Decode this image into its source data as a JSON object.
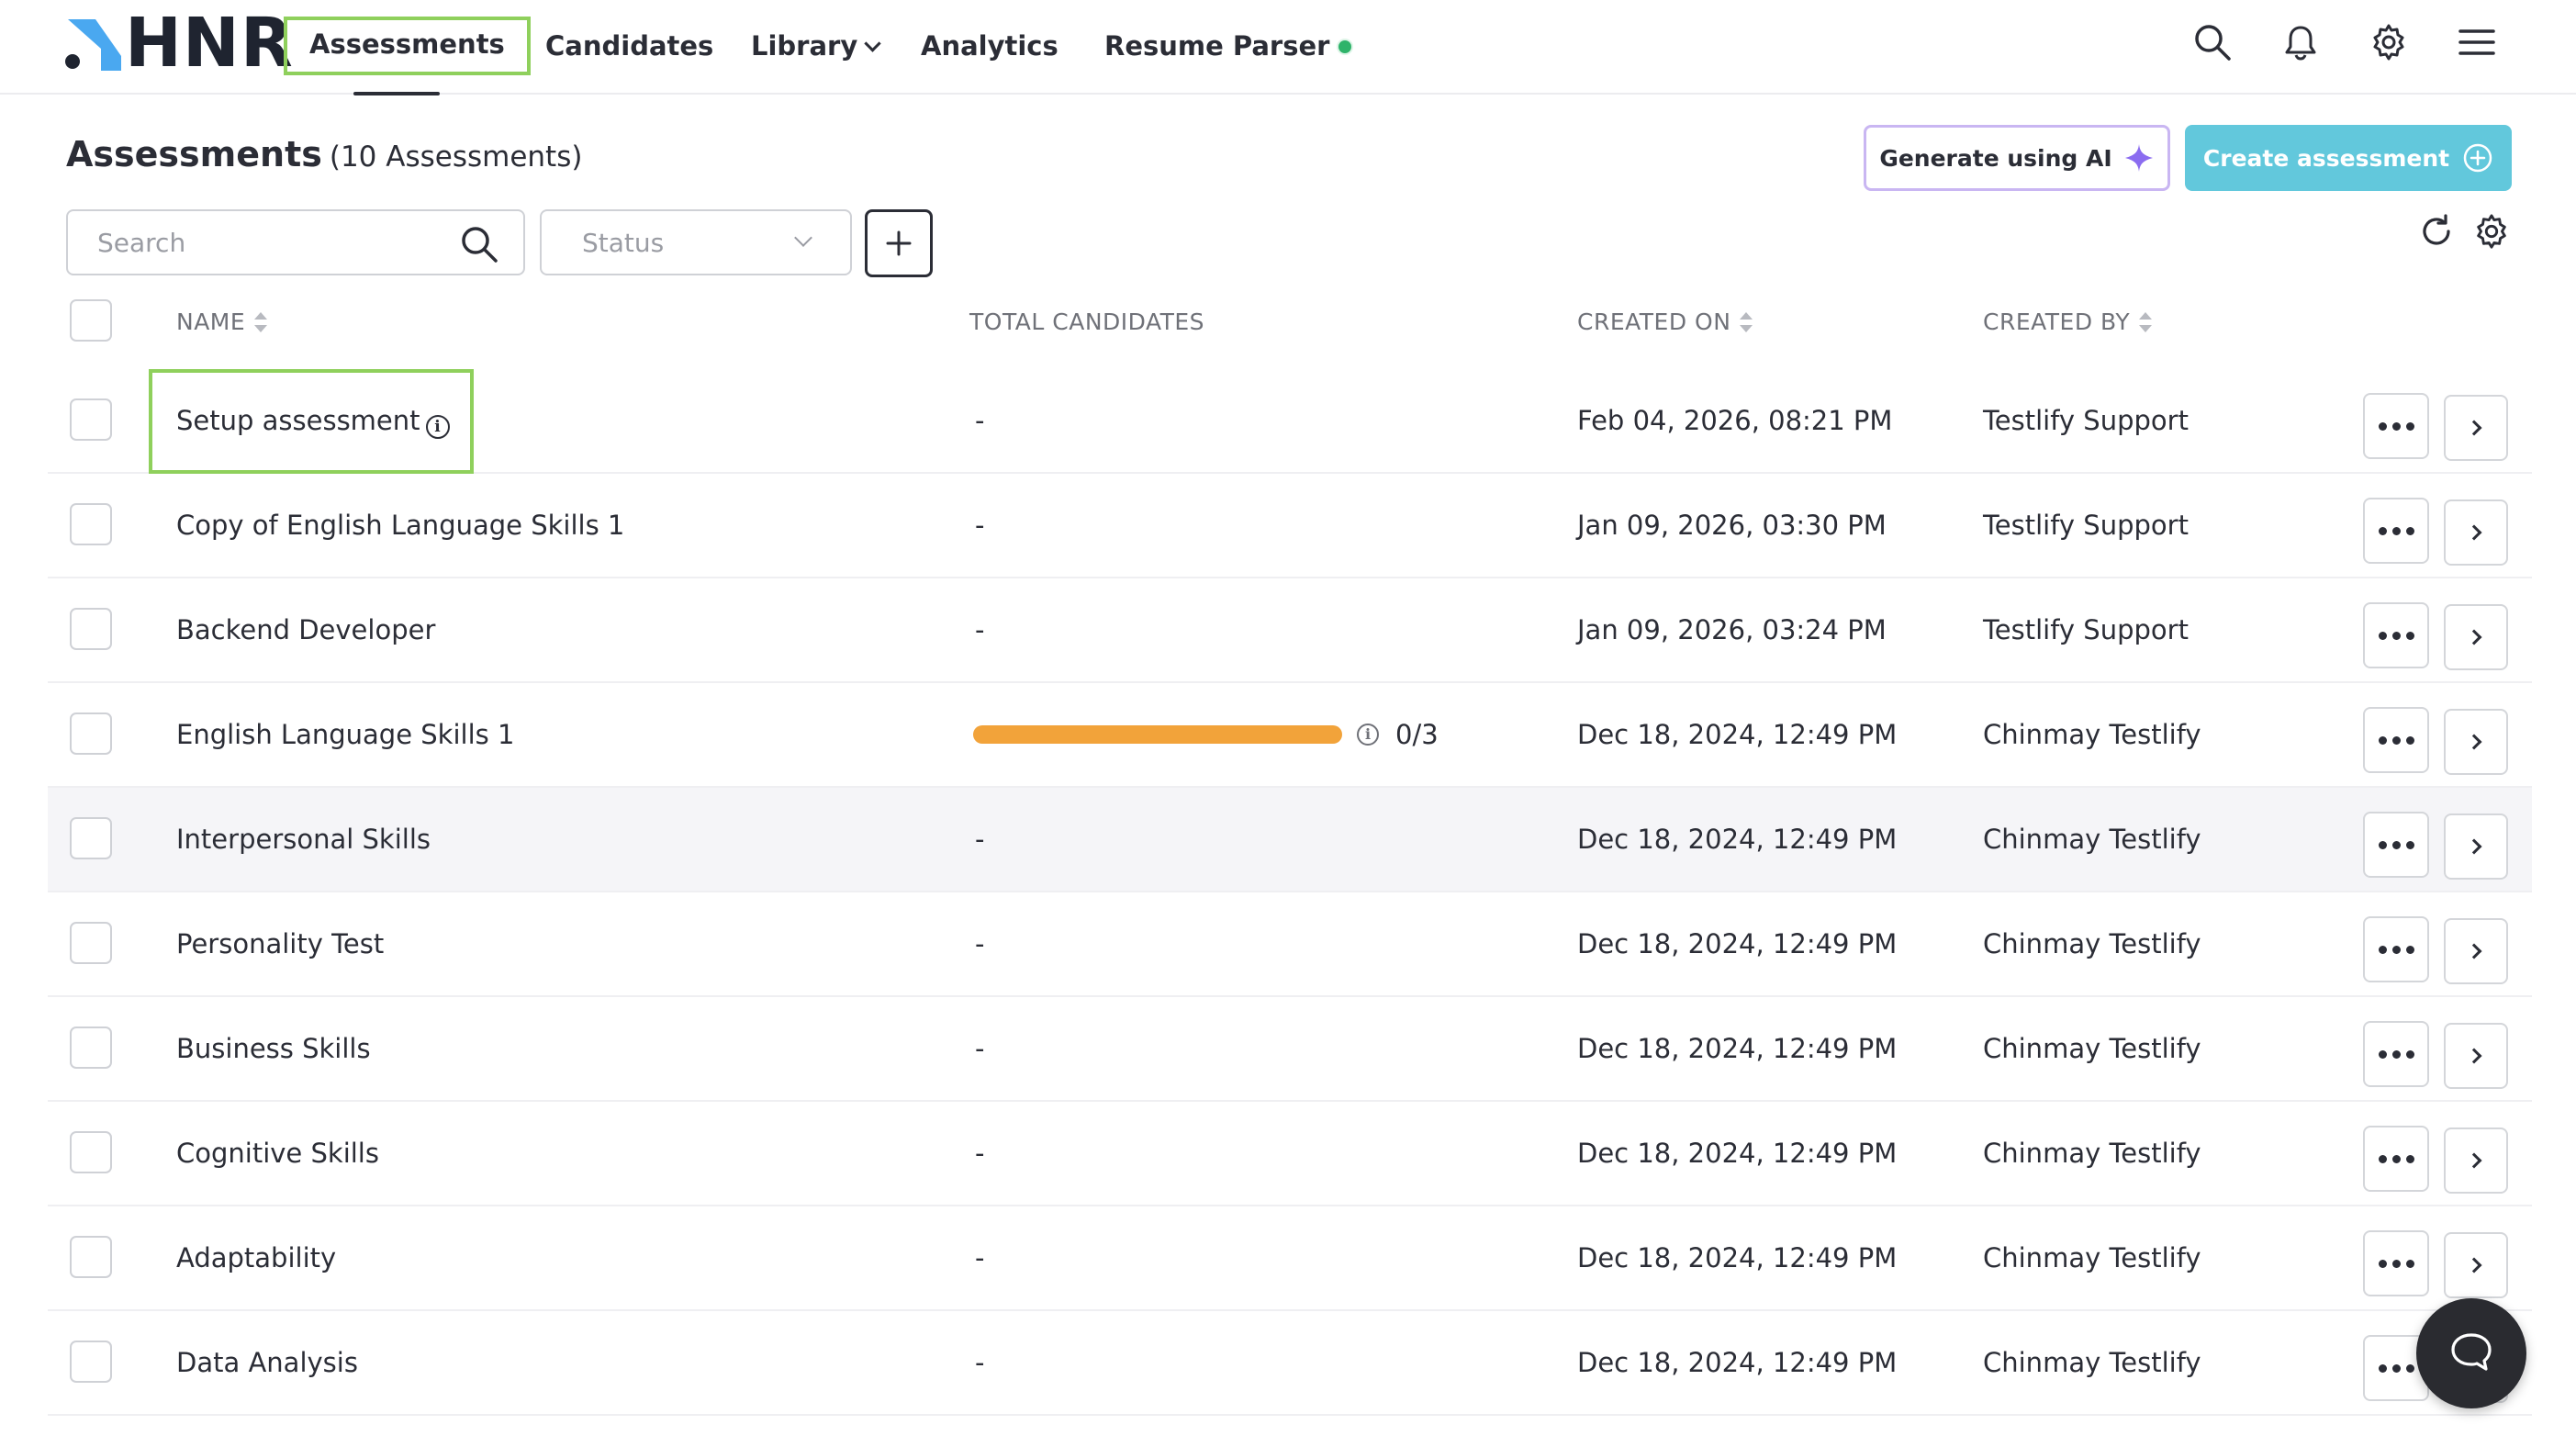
{
  "brand": {
    "logo_text": "HNR",
    "accent": "#62c8dc",
    "logo_mark_color": "#4aa8f0"
  },
  "nav": {
    "items": [
      {
        "label": "Assessments",
        "active": true
      },
      {
        "label": "Candidates"
      },
      {
        "label": "Library"
      },
      {
        "label": "Analytics"
      },
      {
        "label": "Resume Parser"
      }
    ],
    "icons": [
      "search-icon",
      "bell-icon",
      "gear-icon",
      "menu-icon"
    ]
  },
  "header": {
    "title": "Assessments",
    "subtitle": "(10 Assessments)",
    "generate_ai_label": "Generate using AI",
    "create_label": "Create assessment"
  },
  "filters": {
    "search_placeholder": "Search",
    "status_placeholder": "Status"
  },
  "table": {
    "columns": {
      "name": "NAME",
      "total": "TOTAL CANDIDATES",
      "created_on": "CREATED ON",
      "created_by": "CREATED BY"
    },
    "rows": [
      {
        "name": "Setup assessment",
        "total": "-",
        "created_on": "Feb 04, 2026, 08:21 PM",
        "created_by": "Testlify Support",
        "info": true
      },
      {
        "name": "Copy of English Language Skills 1",
        "total": "-",
        "created_on": "Jan 09, 2026, 03:30 PM",
        "created_by": "Testlify Support"
      },
      {
        "name": "Backend Developer",
        "total": "-",
        "created_on": "Jan 09, 2026, 03:24 PM",
        "created_by": "Testlify Support"
      },
      {
        "name": "English Language Skills 1",
        "total": "0/3",
        "progress": 1.0,
        "created_on": "Dec 18, 2024, 12:49 PM",
        "created_by": "Chinmay Testlify"
      },
      {
        "name": "Interpersonal Skills",
        "total": "-",
        "created_on": "Dec 18, 2024, 12:49 PM",
        "created_by": "Chinmay Testlify",
        "highlighted": true
      },
      {
        "name": "Personality Test",
        "total": "-",
        "created_on": "Dec 18, 2024, 12:49 PM",
        "created_by": "Chinmay Testlify"
      },
      {
        "name": "Business Skills",
        "total": "-",
        "created_on": "Dec 18, 2024, 12:49 PM",
        "created_by": "Chinmay Testlify"
      },
      {
        "name": "Cognitive Skills",
        "total": "-",
        "created_on": "Dec 18, 2024, 12:49 PM",
        "created_by": "Chinmay Testlify"
      },
      {
        "name": "Adaptability",
        "total": "-",
        "created_on": "Dec 18, 2024, 12:49 PM",
        "created_by": "Chinmay Testlify"
      },
      {
        "name": "Data Analysis",
        "total": "-",
        "created_on": "Dec 18, 2024, 12:49 PM",
        "created_by": "Chinmay Testlify"
      }
    ]
  }
}
